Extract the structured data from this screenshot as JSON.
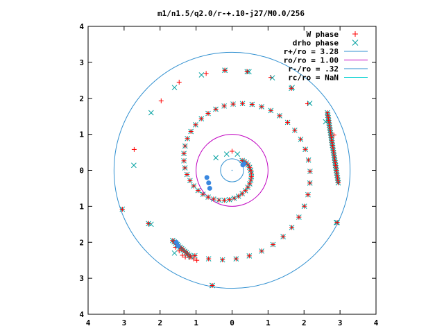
{
  "chart_data": {
    "type": "scatter",
    "title": "m1/n1.5/q2.0/r-+.10-j27/M0.0/256",
    "xlabel": "",
    "ylabel": "",
    "xlim": [
      -4,
      4
    ],
    "ylim": [
      -4,
      4
    ],
    "grid": false,
    "legend_position": "top-right",
    "x_tick_values": [
      -4,
      -3,
      -2,
      -1,
      0,
      1,
      2,
      3,
      4
    ],
    "x_tick_labels": [
      "4",
      "3",
      "2",
      "1",
      "0",
      "1",
      "2",
      "3",
      "4"
    ],
    "y_tick_values": [
      4,
      3,
      2,
      1,
      0,
      -1,
      -2,
      -3,
      -4
    ],
    "y_tick_labels": [
      "4",
      "3",
      "2",
      "1",
      "0",
      "1",
      "2",
      "3",
      "4"
    ],
    "colors": {
      "w_phase": "#ff0000",
      "drho_phase": "#00a0a0",
      "overlap_blue": "#3a88e0",
      "r_plus": "#2f8fd0",
      "r_o": "#c000c0",
      "r_minus": "#2f8fd0",
      "r_c": "#00d0d0",
      "axes": "#000000"
    },
    "series": [
      {
        "name": "W phase",
        "marker": "plus",
        "points": [
          [
            -3.05,
            -1.08
          ],
          [
            -2.72,
            0.58
          ],
          [
            -2.32,
            -1.48
          ],
          [
            -1.97,
            1.93
          ],
          [
            -1.63,
            -1.98
          ],
          [
            -1.57,
            -2.14
          ],
          [
            -1.47,
            -2.24
          ],
          [
            -1.38,
            -2.36
          ],
          [
            -1.3,
            -2.41
          ],
          [
            -1.18,
            -2.42
          ],
          [
            -1.07,
            -2.46
          ],
          [
            -0.98,
            -2.5
          ],
          [
            -1.47,
            2.45
          ],
          [
            -0.72,
            2.69
          ],
          [
            -0.55,
            -3.2
          ],
          [
            -0.2,
            2.78
          ],
          [
            0.42,
            2.74
          ],
          [
            1.08,
            2.58
          ],
          [
            1.65,
            2.28
          ],
          [
            2.1,
            1.85
          ],
          [
            2.68,
            1.37
          ],
          [
            2.83,
            0.98
          ],
          [
            2.92,
            -1.45
          ],
          [
            0.0,
            0.53
          ]
        ]
      },
      {
        "name": "drho phase",
        "marker": "cross",
        "points": [
          [
            -2.73,
            0.14
          ],
          [
            -2.25,
            1.6
          ],
          [
            -2.25,
            -1.5
          ],
          [
            -1.6,
            -2.3
          ],
          [
            -1.6,
            2.3
          ],
          [
            -0.85,
            2.65
          ],
          [
            -0.2,
            2.78
          ],
          [
            0.47,
            2.74
          ],
          [
            1.12,
            2.57
          ],
          [
            1.67,
            2.3
          ],
          [
            2.16,
            1.86
          ],
          [
            2.6,
            1.35
          ],
          [
            -0.55,
            -3.2
          ],
          [
            -0.45,
            0.35
          ],
          [
            -0.15,
            0.45
          ],
          [
            0.15,
            0.45
          ],
          [
            2.9,
            -1.45
          ]
        ]
      },
      {
        "name": "overlap",
        "marker": "star",
        "points": [
          [
            -3.05,
            -1.08
          ],
          [
            -2.32,
            -1.48
          ],
          [
            -0.55,
            -3.2
          ],
          [
            -0.2,
            2.78
          ],
          [
            0.42,
            2.74
          ],
          [
            1.65,
            2.28
          ],
          [
            2.92,
            -1.45
          ]
        ]
      },
      {
        "name": "",
        "marker": "curve-spiral",
        "samples": 120,
        "theta_range": [
          0.52,
          9.45
        ],
        "radius": 0.42,
        "growth": 0.148,
        "note": "spiral arm points"
      }
    ],
    "circles": [
      {
        "name": "r+/ro = 3.28",
        "radius": 3.28
      },
      {
        "name": "ro/ro = 1.00",
        "radius": 1.0
      },
      {
        "name": "r-/ro = .32",
        "radius": 0.32
      },
      {
        "name": "rc/ro = NaN",
        "radius": null
      }
    ],
    "legend": [
      {
        "label": "W phase",
        "marker": "plus"
      },
      {
        "label": "drho phase",
        "marker": "cross"
      },
      {
        "label": "r+/ro = 3.28",
        "marker": "line"
      },
      {
        "label": "ro/ro = 1.00",
        "marker": "line"
      },
      {
        "label": "r-/ro = .32",
        "marker": "line"
      },
      {
        "label": "rc/ro = NaN",
        "marker": "line"
      }
    ]
  }
}
